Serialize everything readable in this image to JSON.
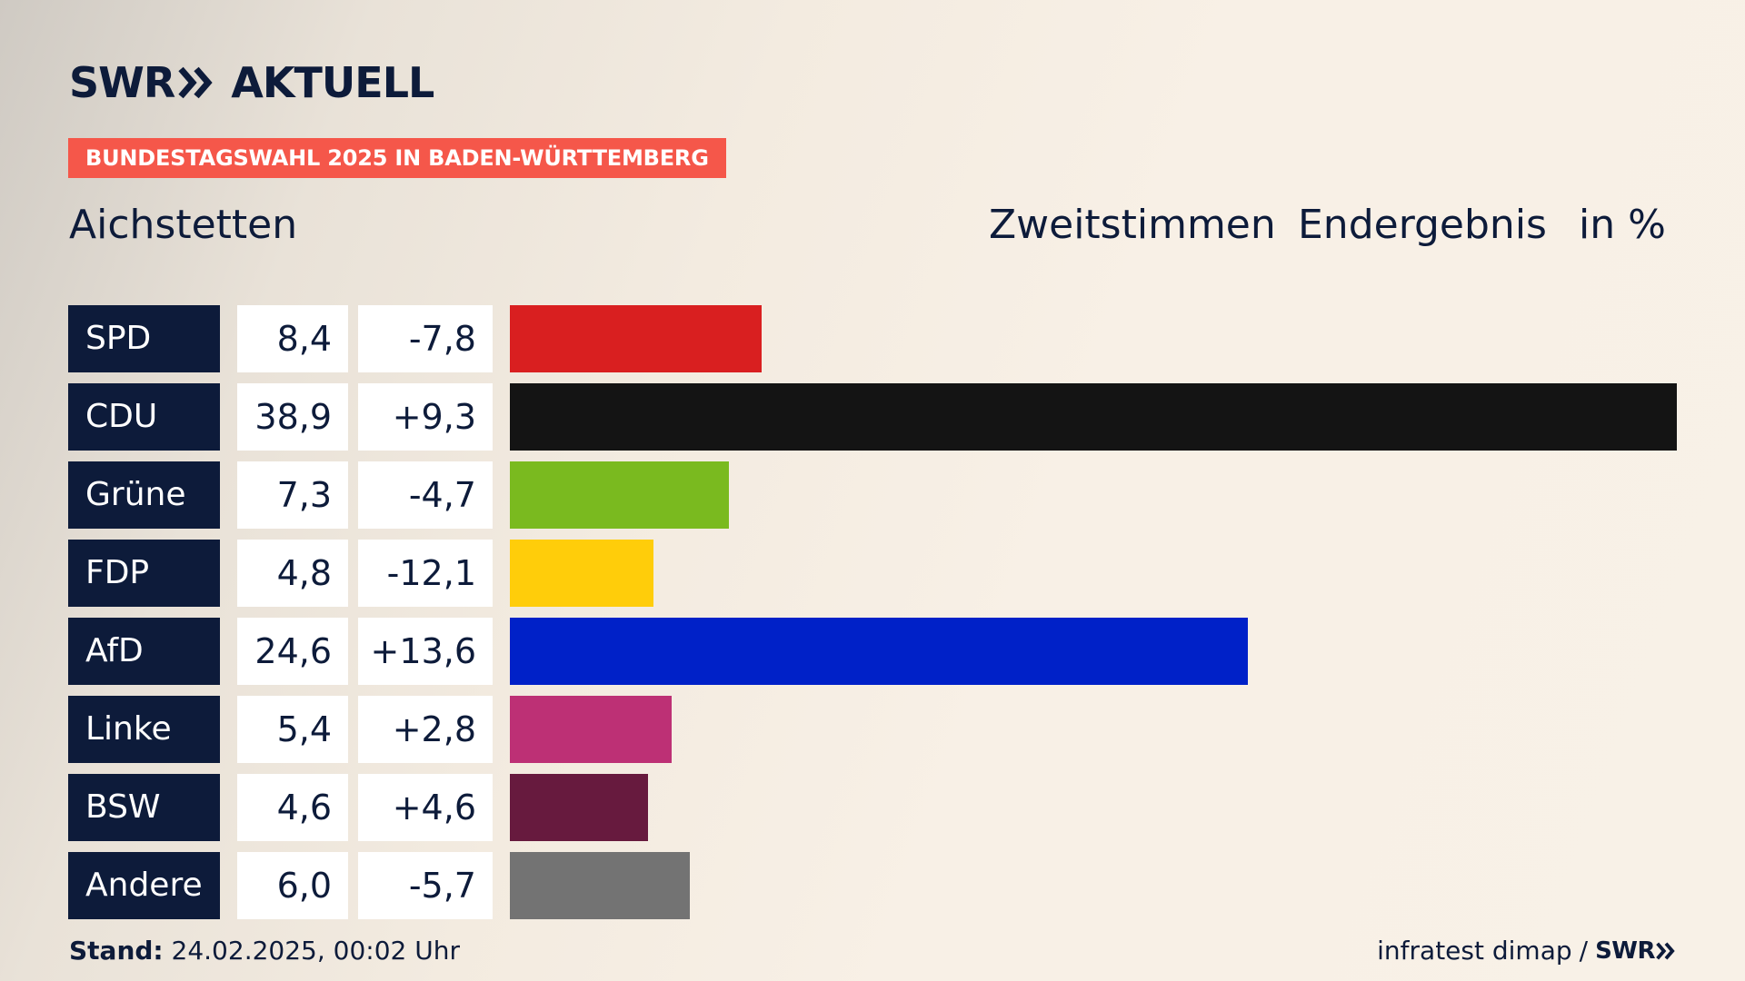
{
  "logo": {
    "text": "SWR",
    "suffix": "AKTUELL",
    "icon": "double-chevron-right-icon"
  },
  "banner": "BUNDESTAGSWAHL 2025 IN BADEN-WÜRTTEMBERG",
  "place": "Aichstetten",
  "header": {
    "vote_type": "Zweitstimmen",
    "status": "Endergebnis",
    "unit": "in %"
  },
  "chart_data": {
    "type": "bar",
    "orientation": "horizontal",
    "categories": [
      "SPD",
      "CDU",
      "Grüne",
      "FDP",
      "AfD",
      "Linke",
      "BSW",
      "Andere"
    ],
    "values": [
      8.4,
      38.9,
      7.3,
      4.8,
      24.6,
      5.4,
      4.6,
      6.0
    ],
    "value_labels": [
      "8,4",
      "38,9",
      "7,3",
      "4,8",
      "24,6",
      "5,4",
      "4,6",
      "6,0"
    ],
    "differences": [
      "-7,8",
      "+9,3",
      "-4,7",
      "-12,1",
      "+13,6",
      "+2,8",
      "+4,6",
      "-5,7"
    ],
    "colors": [
      "#d91f20",
      "#141414",
      "#7aba1f",
      "#ffcd0a",
      "#0021c8",
      "#bd3075",
      "#671a3e",
      "#737373"
    ],
    "xlim": [
      0,
      38.9
    ],
    "grid": false,
    "legend": "none"
  },
  "footer": {
    "stand_label": "Stand:",
    "stand_value": "24.02.2025, 00:02 Uhr",
    "source": "infratest dimap",
    "separator": "/",
    "brand": "SWR"
  }
}
